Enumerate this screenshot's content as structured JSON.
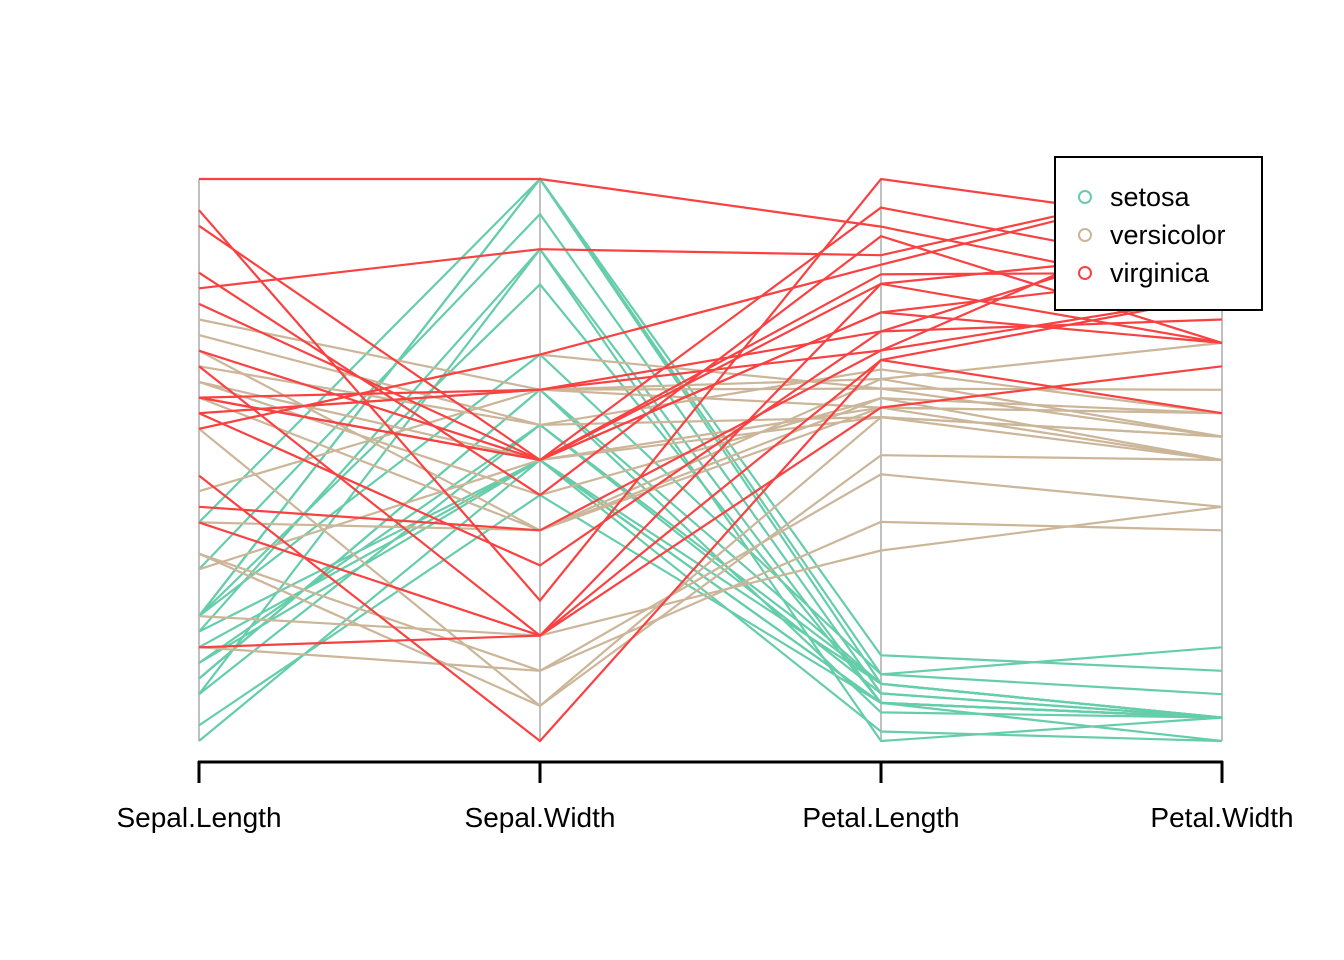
{
  "chart_data": {
    "type": "parallel-coordinates",
    "title": "",
    "axes": [
      "Sepal.Length",
      "Sepal.Width",
      "Petal.Length",
      "Petal.Width"
    ],
    "axis_ranges": [
      [
        4.3,
        7.9
      ],
      [
        2.2,
        3.8
      ],
      [
        1.0,
        6.9
      ],
      [
        0.1,
        2.5
      ]
    ],
    "grid": false,
    "legend_position": "top-right",
    "series": [
      {
        "name": "setosa",
        "color": "#66CDAA",
        "rows": [
          [
            5.1,
            3.5,
            1.4,
            0.2
          ],
          [
            4.9,
            3.0,
            1.4,
            0.2
          ],
          [
            4.7,
            3.2,
            1.3,
            0.2
          ],
          [
            4.6,
            3.1,
            1.5,
            0.2
          ],
          [
            5.0,
            3.6,
            1.4,
            0.2
          ],
          [
            4.4,
            2.9,
            1.4,
            0.2
          ],
          [
            5.4,
            3.7,
            1.5,
            0.2
          ],
          [
            4.8,
            3.0,
            1.4,
            0.1
          ],
          [
            4.3,
            3.0,
            1.1,
            0.1
          ],
          [
            5.7,
            3.8,
            1.7,
            0.3
          ],
          [
            4.6,
            3.6,
            1.0,
            0.2
          ],
          [
            5.1,
            3.3,
            1.7,
            0.5
          ],
          [
            5.0,
            3.0,
            1.6,
            0.2
          ],
          [
            4.7,
            3.2,
            1.6,
            0.2
          ],
          [
            4.8,
            3.1,
            1.6,
            0.2
          ],
          [
            5.1,
            3.8,
            1.9,
            0.4
          ],
          [
            5.1,
            3.8,
            1.6,
            0.2
          ]
        ]
      },
      {
        "name": "versicolor",
        "color": "#CBB699",
        "rows": [
          [
            7.0,
            3.2,
            4.7,
            1.4
          ],
          [
            6.4,
            3.2,
            4.5,
            1.5
          ],
          [
            6.9,
            3.1,
            4.9,
            1.5
          ],
          [
            5.5,
            2.3,
            4.0,
            1.3
          ],
          [
            6.5,
            2.8,
            4.6,
            1.5
          ],
          [
            5.7,
            2.8,
            4.5,
            1.3
          ],
          [
            6.3,
            3.3,
            4.7,
            1.6
          ],
          [
            4.9,
            2.4,
            3.3,
            1.0
          ],
          [
            6.6,
            2.9,
            4.6,
            1.3
          ],
          [
            6.7,
            3.1,
            4.4,
            1.4
          ],
          [
            5.9,
            3.2,
            4.8,
            1.8
          ],
          [
            6.6,
            3.0,
            4.4,
            1.4
          ],
          [
            6.8,
            2.8,
            4.8,
            1.4
          ],
          [
            5.5,
            2.4,
            3.8,
            1.1
          ],
          [
            5.4,
            3.0,
            4.5,
            1.5
          ],
          [
            6.3,
            2.3,
            4.4,
            1.3
          ],
          [
            5.1,
            2.5,
            3.0,
            1.1
          ]
        ]
      },
      {
        "name": "virginica",
        "color": "#FA4141",
        "rows": [
          [
            6.3,
            3.3,
            6.0,
            2.5
          ],
          [
            7.1,
            3.0,
            5.9,
            2.1
          ],
          [
            6.5,
            3.0,
            5.8,
            2.2
          ],
          [
            7.6,
            3.0,
            6.6,
            2.1
          ],
          [
            4.9,
            2.5,
            4.5,
            1.7
          ],
          [
            7.3,
            2.9,
            6.3,
            1.8
          ],
          [
            6.7,
            2.5,
            5.8,
            1.8
          ],
          [
            7.2,
            3.6,
            6.1,
            2.5
          ],
          [
            6.5,
            3.2,
            5.1,
            2.0
          ],
          [
            6.4,
            2.7,
            5.3,
            1.9
          ],
          [
            6.8,
            3.0,
            5.5,
            2.1
          ],
          [
            5.7,
            2.5,
            5.0,
            2.0
          ],
          [
            5.8,
            2.8,
            5.1,
            2.4
          ],
          [
            6.4,
            3.2,
            5.3,
            2.3
          ],
          [
            6.5,
            3.0,
            5.5,
            1.8
          ],
          [
            7.7,
            2.6,
            6.9,
            2.3
          ],
          [
            6.0,
            2.2,
            5.0,
            1.5
          ],
          [
            7.9,
            3.8,
            6.4,
            2.0
          ]
        ]
      }
    ]
  },
  "legend": {
    "items": [
      {
        "label": "setosa",
        "color": "#66CDAA",
        "marker": "open-circle"
      },
      {
        "label": "versicolor",
        "color": "#CBB699",
        "marker": "open-circle"
      },
      {
        "label": "virginica",
        "color": "#FA4141",
        "marker": "open-circle"
      }
    ]
  },
  "colors": {
    "background": "#FFFFFF",
    "axis_line": "#C0C0C0",
    "ruler": "#000000",
    "text": "#000000",
    "setosa": "#66CDAA",
    "versicolor": "#CBB699",
    "virginica": "#FA4141"
  }
}
